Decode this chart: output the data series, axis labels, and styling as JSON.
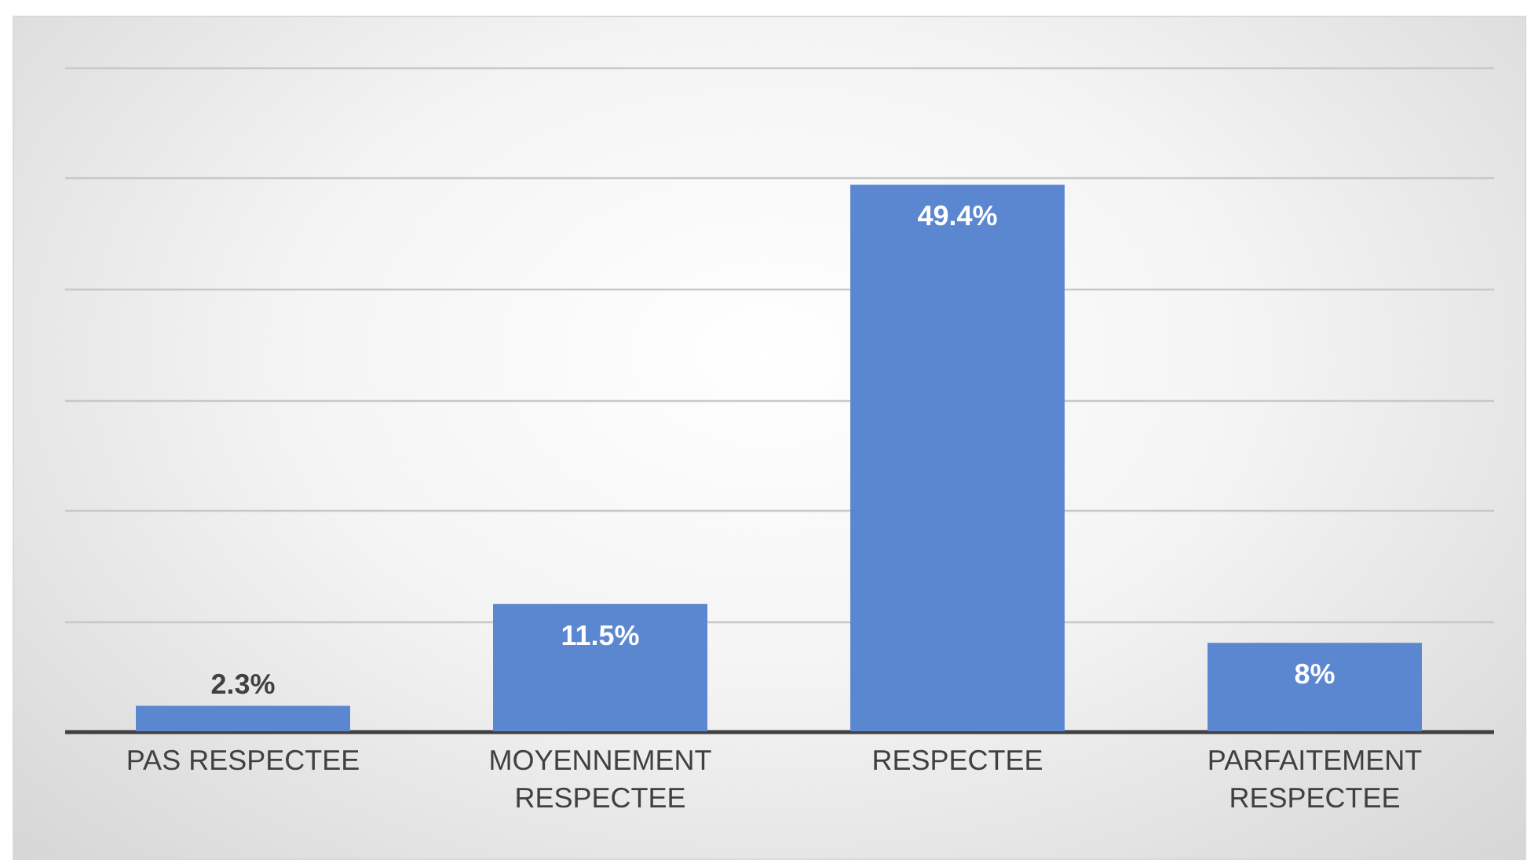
{
  "chart_data": {
    "type": "bar",
    "categories": [
      "PAS RESPECTEE",
      "MOYENNEMENT RESPECTEE",
      "RESPECTEE",
      "PARFAITEMENT RESPECTEE"
    ],
    "values": [
      2.3,
      11.5,
      49.4,
      8
    ],
    "value_labels": [
      "2.3%",
      "11.5%",
      "49.4%",
      "8%"
    ],
    "color": "#5b87d0",
    "ylim": [
      0,
      60
    ],
    "yticks": [
      0,
      10,
      20,
      30,
      40,
      50,
      60
    ],
    "grid": "y",
    "tick_labels": "x"
  }
}
